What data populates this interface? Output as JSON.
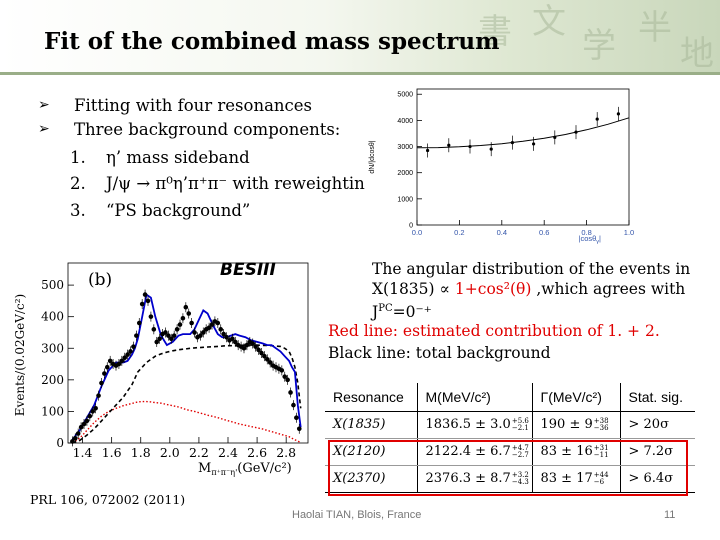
{
  "slide": {
    "title": "Fit of the combined mass spectrum",
    "bullets": [
      "Fitting with four resonances",
      "Three background components:"
    ],
    "sublist": [
      {
        "num": "1.",
        "text": "η’ mass sideband"
      },
      {
        "num": "2.",
        "text": "J/ψ → π⁰η’π⁺π⁻ with reweighting"
      },
      {
        "num": "3.",
        "text": "“PS background”"
      }
    ],
    "angular_text": {
      "part1": "The angular distribution of the events in X(1835) ∝ ",
      "highlight": "1+cos²(θ)",
      "part2": " ,which agrees with J",
      "jpc": "PC",
      "part3": "=0⁻⁺"
    },
    "legend": {
      "red_line": "Red line:  estimated contribution of 1. + 2.",
      "black_line": "Black line: total background"
    },
    "reference": "PRL 106, 072002 (2011)",
    "footer": "Haolai TIAN, Blois, France",
    "page_number": "11"
  },
  "angular_plot": {
    "y_ticks": [
      "5000",
      "4000",
      "3000",
      "2000",
      "1000",
      "0"
    ],
    "x_ticks": [
      "0.0",
      "0.2",
      "0.4",
      "0.6",
      "0.8",
      "1.0"
    ],
    "ylabel": "dN/|dcosθ|",
    "xlabel": "|cosθ",
    "x_sub": "γ",
    "x_end": "|"
  },
  "mass_plot": {
    "brand": "BESIII",
    "panel_label": "(b)",
    "y_ticks": [
      "500",
      "400",
      "300",
      "200",
      "100",
      "0"
    ],
    "x_ticks": [
      "1.4",
      "1.6",
      "1.8",
      "2.0",
      "2.2",
      "2.4",
      "2.6",
      "2.8"
    ],
    "ylabel": "Events/(0.02GeV/c²)",
    "xlabel": "M",
    "x_sub": "π⁺π⁻η'",
    "x_unit": "(GeV/c²)"
  },
  "resonance_table": {
    "headers": [
      "Resonance",
      "M(MeV/c²)",
      "Γ(MeV/c²)",
      "Stat. sig."
    ],
    "rows": [
      [
        "X(1835)",
        "1836.5 ± 3.0",
        "+5.6",
        "−2.1",
        "190 ± 9",
        "+38",
        "−36",
        "> 20σ"
      ],
      [
        "X(2120)",
        "2122.4 ± 6.7",
        "+4.7",
        "−2.7",
        "83 ± 16",
        "+31",
        "−11",
        "> 7.2σ"
      ],
      [
        "X(2370)",
        "2376.3 ± 8.7",
        "+3.2",
        "−4.3",
        "83 ± 17",
        "+44",
        "−6",
        "> 6.4σ"
      ]
    ]
  },
  "chart_data": [
    {
      "type": "scatter",
      "title": "",
      "xlabel": "|cosθγ|",
      "ylabel": "dN/|dcosθ|",
      "xlim": [
        0,
        1
      ],
      "ylim": [
        0,
        5200
      ],
      "series": [
        {
          "x": [
            0.05,
            0.15,
            0.25,
            0.35,
            0.45,
            0.55,
            0.65,
            0.75,
            0.85,
            0.95
          ],
          "values": [
            2850,
            3050,
            3000,
            2900,
            3150,
            3100,
            3350,
            3550,
            4050,
            4250
          ]
        }
      ],
      "fit_x": [
        0,
        0.1,
        0.2,
        0.3,
        0.4,
        0.5,
        0.6,
        0.7,
        0.8,
        0.9,
        1.0
      ],
      "fit_values": [
        2950,
        2960,
        2990,
        3040,
        3110,
        3200,
        3320,
        3460,
        3640,
        3850,
        4100
      ]
    },
    {
      "type": "scatter",
      "title": "",
      "xlabel": "Mπ+π-η'(GeV/c²)",
      "ylabel": "Events/(0.02GeV/c²)",
      "xlim": [
        1.3,
        2.95
      ],
      "ylim": [
        0,
        570
      ],
      "series": [
        {
          "x": [
            1.33,
            1.35,
            1.37,
            1.39,
            1.41,
            1.43,
            1.45,
            1.47,
            1.49,
            1.51,
            1.53,
            1.55,
            1.57,
            1.59,
            1.61,
            1.63,
            1.65,
            1.67,
            1.69,
            1.71,
            1.73,
            1.75,
            1.77,
            1.79,
            1.81,
            1.83,
            1.85,
            1.87,
            1.89,
            1.91,
            1.93,
            1.95,
            1.97,
            1.99,
            2.01,
            2.03,
            2.05,
            2.07,
            2.09,
            2.11,
            2.13,
            2.15,
            2.17,
            2.19,
            2.21,
            2.23,
            2.25,
            2.27,
            2.29,
            2.31,
            2.33,
            2.35,
            2.37,
            2.39,
            2.41,
            2.43,
            2.45,
            2.47,
            2.49,
            2.51,
            2.53,
            2.55,
            2.57,
            2.59,
            2.61,
            2.63,
            2.65,
            2.67,
            2.69,
            2.71,
            2.73,
            2.75,
            2.77,
            2.79,
            2.81,
            2.83,
            2.85,
            2.87,
            2.89
          ],
          "values": [
            5,
            15,
            30,
            50,
            60,
            70,
            85,
            100,
            110,
            150,
            190,
            220,
            240,
            260,
            250,
            245,
            250,
            260,
            270,
            280,
            290,
            305,
            340,
            380,
            440,
            470,
            450,
            400,
            360,
            320,
            330,
            345,
            350,
            340,
            330,
            340,
            360,
            375,
            395,
            430,
            410,
            380,
            350,
            335,
            340,
            350,
            360,
            365,
            375,
            385,
            380,
            360,
            345,
            335,
            325,
            330,
            320,
            310,
            305,
            300,
            310,
            320,
            315,
            305,
            295,
            285,
            275,
            265,
            255,
            245,
            240,
            235,
            230,
            210,
            200,
            160,
            120,
            80,
            45
          ]
        }
      ],
      "total_fit": [
        10,
        40,
        80,
        120,
        180,
        230,
        255,
        255,
        260,
        280,
        300,
        330,
        400,
        470,
        460,
        400,
        340,
        310,
        320,
        340,
        345,
        345,
        345,
        360,
        390,
        420,
        410,
        370,
        345,
        335,
        335,
        340,
        345,
        340,
        335,
        325,
        320,
        315,
        310,
        310,
        300,
        290,
        275,
        260,
        240,
        225,
        120,
        50
      ],
      "fit_x": [
        1.33,
        1.38,
        1.43,
        1.48,
        1.53,
        1.58,
        1.63,
        1.68,
        1.71,
        1.74,
        1.76,
        1.78,
        1.81,
        1.84,
        1.87,
        1.9,
        1.94,
        1.98,
        2.02,
        2.06,
        2.09,
        2.11,
        2.14,
        2.17,
        2.2,
        2.23,
        2.26,
        2.3,
        2.33,
        2.36,
        2.39,
        2.42,
        2.45,
        2.48,
        2.52,
        2.56,
        2.6,
        2.64,
        2.67,
        2.7,
        2.73,
        2.76,
        2.79,
        2.82,
        2.84,
        2.86,
        2.88,
        2.9
      ],
      "black_bg": [
        0,
        8,
        25,
        45,
        70,
        95,
        120,
        145,
        165,
        185,
        205,
        225,
        240,
        255,
        265,
        275,
        282,
        288,
        292,
        295,
        297,
        298,
        300,
        301,
        302,
        303,
        304,
        305,
        306,
        307,
        308,
        308,
        309,
        309,
        310,
        310,
        310,
        309,
        309,
        308,
        307,
        306,
        300,
        290,
        270,
        240,
        190,
        110
      ],
      "red_bg": [
        0,
        15,
        40,
        65,
        85,
        100,
        110,
        118,
        122,
        125,
        128,
        130,
        131,
        131,
        130,
        128,
        126,
        122,
        118,
        114,
        110,
        106,
        103,
        100,
        96,
        92,
        88,
        84,
        80,
        76,
        72,
        68,
        64,
        60,
        56,
        52,
        48,
        44,
        40,
        36,
        32,
        28,
        24,
        20,
        15,
        10,
        6,
        2
      ]
    }
  ]
}
